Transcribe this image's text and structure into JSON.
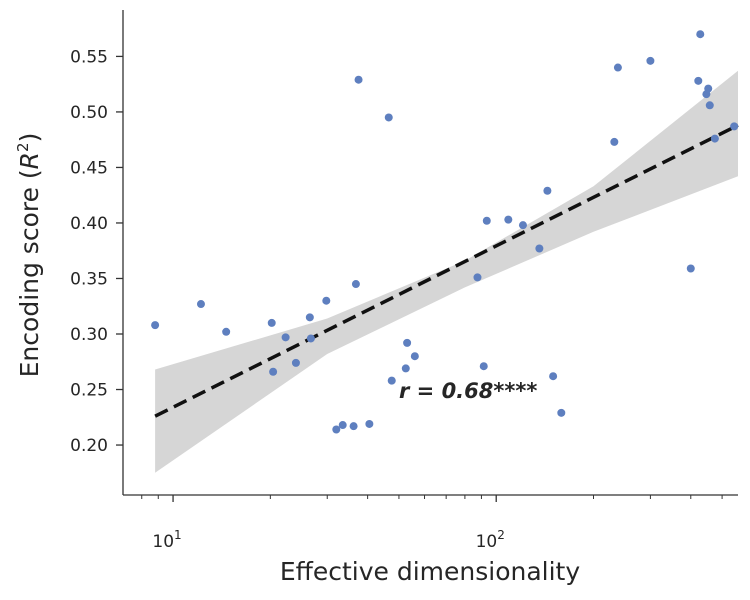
{
  "chart_data": {
    "type": "scatter",
    "x_scale": "log",
    "xlabel": "Effective dimensionality",
    "ylabel_prefix": "Encoding score (",
    "ylabel_symbol": "R",
    "ylabel_sup": "2",
    "ylabel_suffix": ")",
    "xlim": [
      7,
      560
    ],
    "ylim": [
      0.155,
      0.59
    ],
    "grid": false,
    "x_ticks": [
      {
        "value": 10,
        "base": "10",
        "exp": "1"
      },
      {
        "value": 100,
        "base": "10",
        "exp": "2"
      }
    ],
    "y_ticks": [
      0.2,
      0.25,
      0.3,
      0.35,
      0.4,
      0.45,
      0.5,
      0.55
    ],
    "y_tick_labels": [
      "0.20",
      "0.25",
      "0.30",
      "0.35",
      "0.40",
      "0.45",
      "0.50",
      "0.55"
    ],
    "annotation": "r = 0.68****",
    "point_color": "#5e7fbf",
    "line_color": "#111111",
    "band_color": "#d6d6d6",
    "regression": {
      "x": [
        8.8,
        560
      ],
      "y": [
        0.226,
        0.488
      ]
    },
    "confidence_band": {
      "upper": [
        [
          8.8,
          0.268
        ],
        [
          30,
          0.314
        ],
        [
          80,
          0.366
        ],
        [
          200,
          0.433
        ],
        [
          560,
          0.537
        ]
      ],
      "lower": [
        [
          560,
          0.442
        ],
        [
          200,
          0.392
        ],
        [
          80,
          0.342
        ],
        [
          30,
          0.282
        ],
        [
          8.8,
          0.175
        ]
      ]
    },
    "points": [
      {
        "x": 8.8,
        "y": 0.308
      },
      {
        "x": 12.2,
        "y": 0.327
      },
      {
        "x": 14.6,
        "y": 0.302
      },
      {
        "x": 20.2,
        "y": 0.31
      },
      {
        "x": 20.4,
        "y": 0.266
      },
      {
        "x": 22.3,
        "y": 0.297
      },
      {
        "x": 24.0,
        "y": 0.274
      },
      {
        "x": 26.5,
        "y": 0.315
      },
      {
        "x": 26.7,
        "y": 0.296
      },
      {
        "x": 29.8,
        "y": 0.33
      },
      {
        "x": 32.0,
        "y": 0.214
      },
      {
        "x": 33.5,
        "y": 0.218
      },
      {
        "x": 36.2,
        "y": 0.217
      },
      {
        "x": 36.8,
        "y": 0.345
      },
      {
        "x": 37.5,
        "y": 0.529
      },
      {
        "x": 40.5,
        "y": 0.219
      },
      {
        "x": 46.5,
        "y": 0.495
      },
      {
        "x": 47.5,
        "y": 0.258
      },
      {
        "x": 52.5,
        "y": 0.269
      },
      {
        "x": 53.0,
        "y": 0.292
      },
      {
        "x": 56.0,
        "y": 0.28
      },
      {
        "x": 87.5,
        "y": 0.351
      },
      {
        "x": 91.5,
        "y": 0.271
      },
      {
        "x": 93.5,
        "y": 0.402
      },
      {
        "x": 109.0,
        "y": 0.403
      },
      {
        "x": 121.0,
        "y": 0.398
      },
      {
        "x": 136.0,
        "y": 0.377
      },
      {
        "x": 144.0,
        "y": 0.429
      },
      {
        "x": 150.0,
        "y": 0.262
      },
      {
        "x": 159.0,
        "y": 0.229
      },
      {
        "x": 232.0,
        "y": 0.473
      },
      {
        "x": 238.0,
        "y": 0.54
      },
      {
        "x": 300.0,
        "y": 0.546
      },
      {
        "x": 400.0,
        "y": 0.359
      },
      {
        "x": 422.0,
        "y": 0.528
      },
      {
        "x": 428.0,
        "y": 0.57
      },
      {
        "x": 447.0,
        "y": 0.516
      },
      {
        "x": 453.0,
        "y": 0.521
      },
      {
        "x": 458.0,
        "y": 0.506
      },
      {
        "x": 475.0,
        "y": 0.476
      },
      {
        "x": 545.0,
        "y": 0.487
      }
    ]
  }
}
